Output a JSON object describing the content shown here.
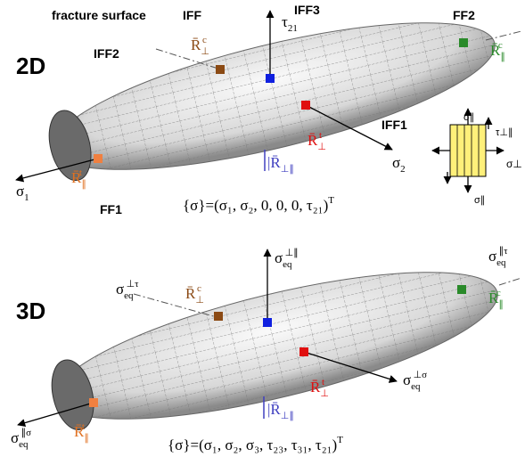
{
  "panel_2d": {
    "dimension": "2D",
    "fracture_surface": "fracture surface",
    "iff": "IFF",
    "iff3": "IFF3",
    "iff2": "IFF2",
    "ff2": "FF2",
    "iff1": "IFF1",
    "ff1": "FF1",
    "tau21": {
      "base": "τ",
      "sub": "21"
    },
    "sigma2": {
      "base": "σ",
      "sub": "2"
    },
    "sigma1": {
      "base": "σ",
      "sub": "1"
    },
    "r_perp_c": {
      "base": "R̄",
      "sub": "⊥",
      "sup": "c"
    },
    "r_par_c": {
      "base": "R̄",
      "sub": "∥",
      "sup": "c"
    },
    "r_perp_t": {
      "base": "R̄",
      "sub": "⊥",
      "sup": "t"
    },
    "r_par_t": {
      "base": "R̄",
      "sub": "∥",
      "sup": "t"
    },
    "r_perp_par": {
      "base": "|R̄",
      "sub": "⊥∥"
    },
    "stress_vector": {
      "base": "{σ}=(σ₁, σ₂, 0, 0, 0, τ₂₁)",
      "sup": "T"
    },
    "inset": {
      "top": "σ∥",
      "right_shear": "τ⊥∥",
      "right": "σ⊥",
      "bottom": "σ∥"
    }
  },
  "panel_3d": {
    "dimension": "3D",
    "sigma_eq_perp_tau": {
      "base": "σ",
      "sub": "eq",
      "sup": "⊥τ"
    },
    "sigma_eq_par": {
      "base": "σ",
      "sub": "eq",
      "sup": "⊥∥"
    },
    "sigma_eq_par_tau": {
      "base": "σ",
      "sub": "eq",
      "sup": "∥τ"
    },
    "sigma_eq_perp_sigma": {
      "base": "σ",
      "sub": "eq",
      "sup": "⊥σ"
    },
    "sigma_eq_par_sigma": {
      "base": "σ",
      "sub": "eq",
      "sup": "∥σ"
    },
    "r_perp_c": {
      "base": "R̄",
      "sub": "⊥",
      "sup": "c"
    },
    "r_par_c": {
      "base": "R̄",
      "sub": "∥",
      "sup": "c"
    },
    "r_perp_t": {
      "base": "R̄",
      "sub": "⊥",
      "sup": "t"
    },
    "r_par_t": {
      "base": "R̄",
      "sub": "∥",
      "sup": "t"
    },
    "r_perp_par": {
      "base": "|R̄",
      "sub": "⊥∥"
    },
    "stress_vector": {
      "base": "{σ}=(σ₁, σ₂, σ₃, τ₂₃, τ₃₁, τ₂₁)",
      "sup": "T"
    }
  }
}
